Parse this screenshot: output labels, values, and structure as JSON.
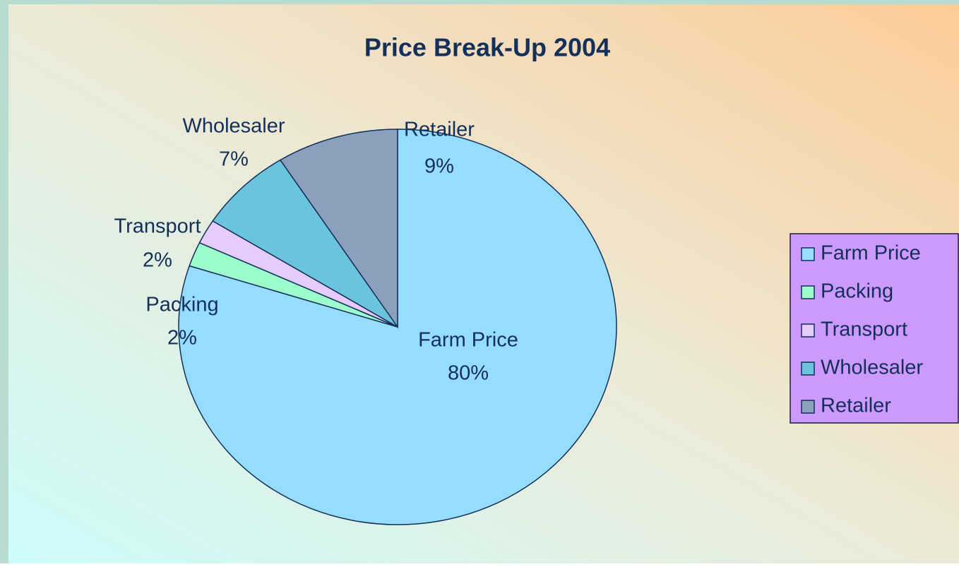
{
  "chart_data": {
    "type": "pie",
    "title": "Price Break-Up 2004",
    "categories": [
      "Farm Price",
      "Packing",
      "Transport",
      "Wholesaler",
      "Retailer"
    ],
    "values": [
      80,
      2,
      2,
      7,
      9
    ],
    "value_labels": [
      "80%",
      "2%",
      "2%",
      "7%",
      "9%"
    ],
    "colors": [
      "#96dcfc",
      "#9cfccc",
      "#e4ccfc",
      "#6cc4dc",
      "#8aa0bc"
    ],
    "legend": "right"
  }
}
